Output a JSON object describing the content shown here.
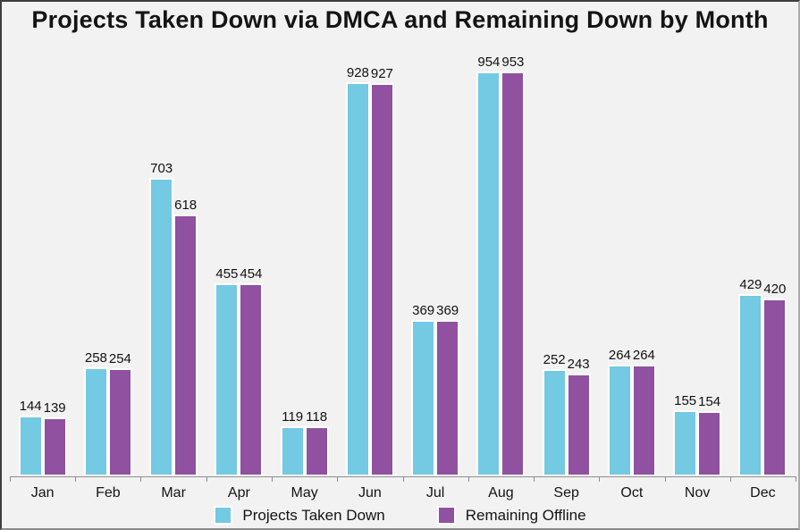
{
  "chart_data": {
    "type": "bar",
    "title": "Projects Taken Down via DMCA and Remaining Down by Month",
    "categories": [
      "Jan",
      "Feb",
      "Mar",
      "Apr",
      "May",
      "Jun",
      "Jul",
      "Aug",
      "Sep",
      "Oct",
      "Nov",
      "Dec"
    ],
    "series": [
      {
        "name": "Projects Taken Down",
        "color": "#74C9E3",
        "values": [
          144,
          258,
          703,
          455,
          119,
          928,
          369,
          954,
          252,
          264,
          155,
          429
        ]
      },
      {
        "name": "Remaining Offline",
        "color": "#8F51A0",
        "values": [
          139,
          254,
          618,
          454,
          118,
          927,
          369,
          953,
          243,
          264,
          154,
          420
        ]
      }
    ],
    "value_labels": true,
    "legend_position": "bottom",
    "xlabel": "",
    "ylabel": "",
    "ylim": [
      0,
      958
    ],
    "grid": false,
    "y_axis_visible": false
  },
  "colors": {
    "background": "#f2f2f2",
    "bar_stroke": "#ffffff",
    "axis": "#8e8e8e",
    "text": "#141414"
  }
}
